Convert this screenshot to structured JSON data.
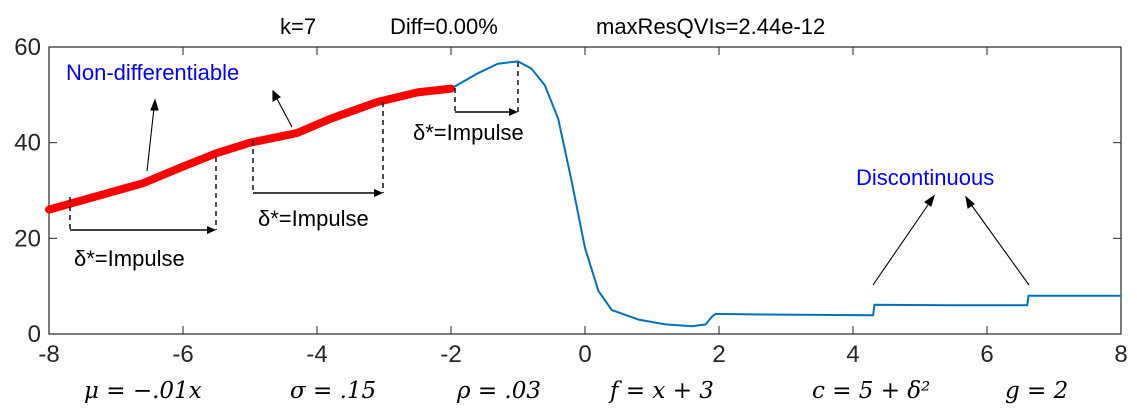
{
  "chart_data": {
    "type": "line",
    "title_parts": [
      "k=7",
      "Diff=0.00%",
      "maxResQVIs=2.44e-12"
    ],
    "xlim": [
      -8,
      8
    ],
    "ylim": [
      0,
      60
    ],
    "xticks": [
      "-8",
      "-6",
      "-4",
      "-2",
      "0",
      "2",
      "4",
      "6",
      "8"
    ],
    "yticks": [
      "0",
      "20",
      "40",
      "60"
    ],
    "series": [
      {
        "color": "#0072BD",
        "x": [
          -8,
          -6.6,
          -6,
          -5.5,
          -5,
          -4.3,
          -3.8,
          -3.1,
          -2.5,
          -2.0,
          -1.6,
          -1.3,
          -1.0,
          -0.8,
          -0.6,
          -0.4,
          -0.2,
          0,
          0.2,
          0.4,
          0.8,
          1.2,
          1.6,
          1.8,
          1.9,
          1.95,
          2.5,
          3.5,
          4.3,
          4.32,
          5.5,
          6.6,
          6.62,
          8
        ],
        "y": [
          26,
          31.5,
          35,
          37.8,
          40,
          42,
          45,
          48.5,
          50.5,
          51.3,
          54.5,
          56.5,
          57,
          55.5,
          52,
          45,
          32,
          18,
          9,
          5,
          3,
          2,
          1.6,
          2,
          3.7,
          4.2,
          4.1,
          4.0,
          3.9,
          6.1,
          6.0,
          6.0,
          8.0,
          8.0
        ]
      },
      {
        "color": "#FF0000",
        "x": [
          -8,
          -6.6,
          -6,
          -5.5,
          -5,
          -4.3,
          -3.8,
          -3.1,
          -2.5,
          -2.0
        ],
        "y": [
          26,
          31.5,
          35,
          37.8,
          40,
          42,
          45,
          48.5,
          50.5,
          51.3
        ]
      }
    ],
    "annotations": {
      "nondiff": "Non-differentiable",
      "discont": "Discontinuous",
      "impulse_a": "δ*=Impulse",
      "impulse_b": "δ*=Impulse",
      "impulse_c": "δ*=Impulse"
    },
    "param_labels": [
      "μ = −.01x",
      "σ = .15",
      "ρ = .03",
      "f = x + 3",
      "c = 5 + δ²",
      "g = 2"
    ],
    "colors": {
      "curve": "#0072BD",
      "highlight": "#FF0000",
      "annotation_text": "#0000FF",
      "axis": "#262626"
    }
  }
}
